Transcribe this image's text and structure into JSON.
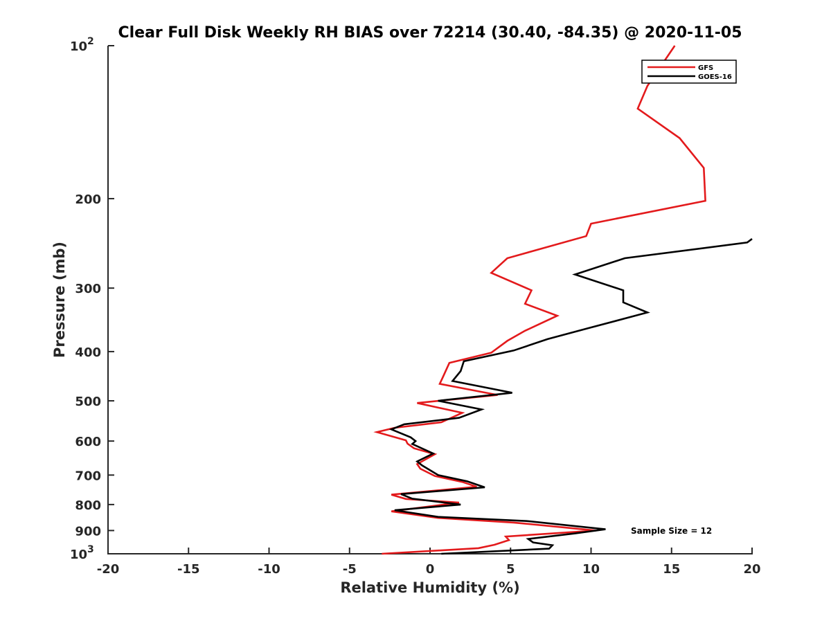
{
  "chart_data": {
    "type": "line",
    "title": "Clear Full Disk Weekly RH BIAS over 72214 (30.40, -84.35) @ 2020-11-05",
    "xlabel": "Relative Humidity (%)",
    "ylabel": "Pressure (mb)",
    "xlim": [
      -20,
      20
    ],
    "ylim": [
      100,
      1000
    ],
    "yscale": "log",
    "y_reversed": true,
    "grid": false,
    "legend_position": "top-right",
    "x_ticks": [
      {
        "value": -20,
        "label": "-20"
      },
      {
        "value": -15,
        "label": "-15"
      },
      {
        "value": -10,
        "label": "-10"
      },
      {
        "value": -5,
        "label": "-5"
      },
      {
        "value": 0,
        "label": "0"
      },
      {
        "value": 5,
        "label": "5"
      },
      {
        "value": 10,
        "label": "10"
      },
      {
        "value": 15,
        "label": "15"
      },
      {
        "value": 20,
        "label": "20"
      }
    ],
    "y_ticks": [
      {
        "value": 100,
        "base": "10",
        "exp": "2"
      },
      {
        "value": 200,
        "label": "200"
      },
      {
        "value": 300,
        "label": "300"
      },
      {
        "value": 400,
        "label": "400"
      },
      {
        "value": 500,
        "label": "500"
      },
      {
        "value": 600,
        "label": "600"
      },
      {
        "value": 700,
        "label": "700"
      },
      {
        "value": 800,
        "label": "800"
      },
      {
        "value": 900,
        "label": "900"
      },
      {
        "value": 1000,
        "base": "10",
        "exp": "3"
      }
    ],
    "series": [
      {
        "name": "GFS",
        "color": "#e31a1c",
        "points": [
          [
            15.2,
            100
          ],
          [
            13.5,
            120
          ],
          [
            12.9,
            133
          ],
          [
            15.5,
            152
          ],
          [
            17.0,
            174
          ],
          [
            17.1,
            202
          ],
          [
            10.0,
            224
          ],
          [
            9.7,
            237
          ],
          [
            4.8,
            262
          ],
          [
            3.8,
            280
          ],
          [
            6.3,
            303
          ],
          [
            5.9,
            322
          ],
          [
            7.9,
            340
          ],
          [
            5.9,
            364
          ],
          [
            4.8,
            381
          ],
          [
            3.8,
            402
          ],
          [
            1.2,
            421
          ],
          [
            0.8,
            449
          ],
          [
            0.6,
            463
          ],
          [
            4.2,
            487
          ],
          [
            -0.8,
            505
          ],
          [
            2.0,
            528
          ],
          [
            0.7,
            551
          ],
          [
            -2.2,
            565
          ],
          [
            -3.3,
            576
          ],
          [
            -1.5,
            598
          ],
          [
            -1.4,
            607
          ],
          [
            -1.0,
            620
          ],
          [
            0.3,
            637
          ],
          [
            -0.8,
            666
          ],
          [
            -0.6,
            680
          ],
          [
            0.3,
            703
          ],
          [
            2.0,
            722
          ],
          [
            2.9,
            738
          ],
          [
            -2.4,
            765
          ],
          [
            -1.5,
            780
          ],
          [
            1.8,
            793
          ],
          [
            -2.4,
            825
          ],
          [
            0.5,
            850
          ],
          [
            5.2,
            868
          ],
          [
            10.3,
            900
          ],
          [
            4.7,
            925
          ],
          [
            4.9,
            940
          ],
          [
            4.0,
            960
          ],
          [
            3.0,
            975
          ],
          [
            -3.0,
            1000
          ]
        ]
      },
      {
        "name": "GOES-16",
        "color": "#000000",
        "points": [
          [
            20.0,
            240
          ],
          [
            19.7,
            244
          ],
          [
            12.1,
            262
          ],
          [
            9.0,
            282
          ],
          [
            12.0,
            303
          ],
          [
            12.0,
            320
          ],
          [
            13.5,
            335
          ],
          [
            9.8,
            360
          ],
          [
            7.3,
            378
          ],
          [
            5.2,
            398
          ],
          [
            2.1,
            418
          ],
          [
            1.9,
            437
          ],
          [
            1.4,
            457
          ],
          [
            5.1,
            482
          ],
          [
            0.5,
            500
          ],
          [
            3.2,
            520
          ],
          [
            1.8,
            540
          ],
          [
            -1.6,
            556
          ],
          [
            -2.4,
            569
          ],
          [
            -1.2,
            590
          ],
          [
            -0.9,
            600
          ],
          [
            -1.1,
            608
          ],
          [
            0.2,
            635
          ],
          [
            -0.8,
            658
          ],
          [
            -0.5,
            670
          ],
          [
            0.5,
            700
          ],
          [
            2.3,
            720
          ],
          [
            3.4,
            740
          ],
          [
            -1.8,
            763
          ],
          [
            -1.1,
            779
          ],
          [
            1.9,
            800
          ],
          [
            -2.2,
            821
          ],
          [
            0.5,
            846
          ],
          [
            6.0,
            862
          ],
          [
            10.9,
            895
          ],
          [
            9.0,
            912
          ],
          [
            6.1,
            935
          ],
          [
            6.4,
            950
          ],
          [
            7.6,
            962
          ],
          [
            7.4,
            977
          ],
          [
            0.7,
            1000
          ]
        ]
      }
    ],
    "legend": [
      {
        "label": "GFS",
        "color": "#e31a1c"
      },
      {
        "label": "GOES-16",
        "color": "#000000"
      }
    ],
    "annotation": "Sample Size = 12"
  }
}
